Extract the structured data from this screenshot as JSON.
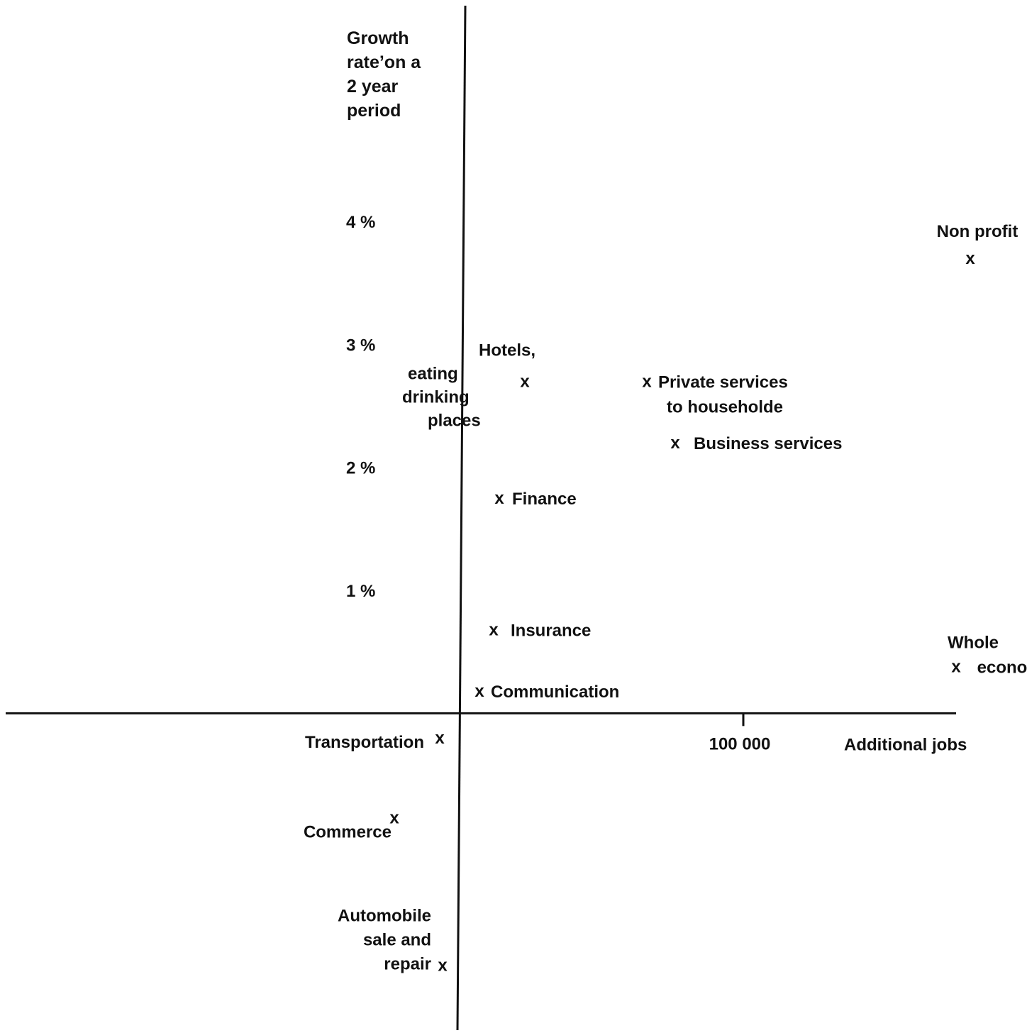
{
  "chart_data": {
    "type": "scatter",
    "ylabel": [
      "Growth",
      "rate’on a",
      "2 year",
      "period"
    ],
    "xlabel": "Additional jobs",
    "x_ticks": [
      {
        "value": 100000,
        "label": "100 000"
      }
    ],
    "y_ticks": [
      {
        "value": 1,
        "label": "1 %"
      },
      {
        "value": 2,
        "label": "2 %"
      },
      {
        "value": 3,
        "label": "3 %"
      },
      {
        "value": 4,
        "label": "4 %"
      }
    ],
    "xlim": [
      -162000,
      200000
    ],
    "ylim": [
      -2.6,
      5.8
    ],
    "grid": false,
    "legend": "none",
    "marker": "x",
    "points": [
      {
        "label": [
          "Non profit"
        ],
        "x": 180000,
        "y": 3.7
      },
      {
        "label": [
          "Hotels,",
          "eating",
          "drinking",
          "places"
        ],
        "x": 23000,
        "y": 2.7
      },
      {
        "label": [
          "Private services",
          "to householde"
        ],
        "x": 66000,
        "y": 2.7
      },
      {
        "label": [
          "Business services"
        ],
        "x": 76000,
        "y": 2.2
      },
      {
        "label": [
          "Finance"
        ],
        "x": 14000,
        "y": 1.75
      },
      {
        "label": [
          "Insurance"
        ],
        "x": 12000,
        "y": 0.68
      },
      {
        "label": [
          "Whole",
          "economy"
        ],
        "x": 175000,
        "y": 0.38
      },
      {
        "label": [
          "Communication"
        ],
        "x": 7000,
        "y": 0.18
      },
      {
        "label": [
          "Transportation"
        ],
        "x": -7000,
        "y": -0.2
      },
      {
        "label": [
          "Commerce"
        ],
        "x": -23000,
        "y": -0.85
      },
      {
        "label": [
          "Automobile",
          "sale and",
          "repair"
        ],
        "x": -6000,
        "y": -2.05
      }
    ]
  }
}
